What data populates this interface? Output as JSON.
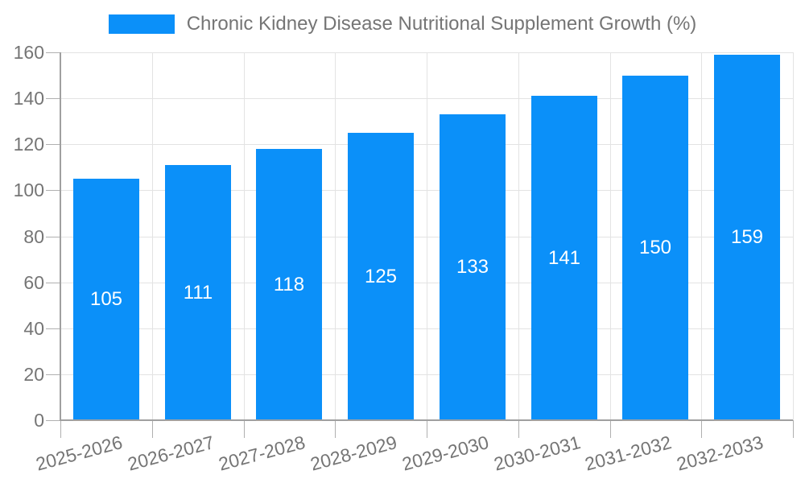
{
  "chart_data": {
    "type": "bar",
    "title": "Chronic Kidney Disease Nutritional Supplement Growth (%)",
    "legend_position": "top",
    "categories": [
      "2025-2026",
      "2026-2027",
      "2027-2028",
      "2028-2029",
      "2029-2030",
      "2030-2031",
      "2031-2032",
      "2032-2033"
    ],
    "values": [
      105,
      111,
      118,
      125,
      133,
      141,
      150,
      159
    ],
    "xlabel": "",
    "ylabel": "",
    "ylim": [
      0,
      160
    ],
    "yticks": [
      0,
      20,
      40,
      60,
      80,
      100,
      120,
      140,
      160
    ],
    "grid": true,
    "bar_labels_inside": true,
    "colors": {
      "bar": "#0b90f9",
      "bar_label": "#ffffff",
      "text": "#757575",
      "grid": "#e3e3e3",
      "tick": "#b0b0b0",
      "axis": "#a0a0a0",
      "background": "#ffffff"
    }
  }
}
